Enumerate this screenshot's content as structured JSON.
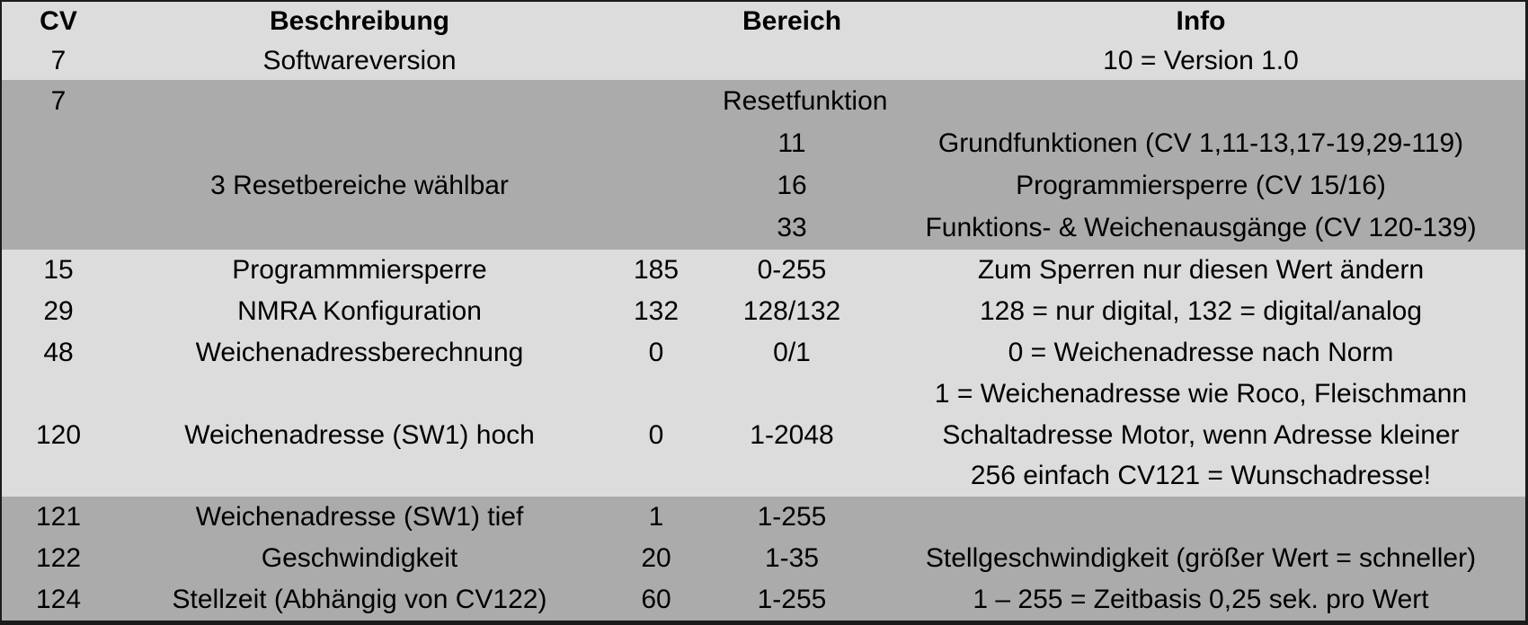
{
  "colors": {
    "light_row": "#dcdcdc",
    "dark_row": "#ababab",
    "text": "#000000",
    "frame": "#1b1b1b"
  },
  "table": {
    "header": [
      "CV",
      "Beschreibung",
      "",
      "Bereich",
      "Info"
    ],
    "rows": [
      {
        "cells": [
          "7",
          "Softwareversion",
          "",
          "",
          "10 = Version 1.0"
        ]
      },
      {
        "cells": [
          "7",
          "",
          "",
          "Resetfunktion",
          ""
        ],
        "merged": true
      },
      {
        "cells": [
          "",
          "",
          "",
          "11",
          "Grundfunktionen (CV 1,11-13,17-19,29-119)"
        ]
      },
      {
        "cells": [
          "",
          "3 Resetbereiche wählbar",
          "",
          "16",
          "Programmiersperre (CV 15/16)"
        ]
      },
      {
        "cells": [
          "",
          "",
          "",
          "33",
          "Funktions- & Weichenausgänge (CV 120-139)"
        ]
      },
      {
        "cells": [
          "15",
          "Programmmiersperre",
          "185",
          "0-255",
          "Zum Sperren nur diesen Wert ändern"
        ]
      },
      {
        "cells": [
          "29",
          "NMRA Konfiguration",
          "132",
          "128/132",
          "128 = nur digital, 132 = digital/analog"
        ]
      },
      {
        "cells": [
          "48",
          "Weichenadressberechnung",
          "0",
          "0/1",
          "0 = Weichenadresse nach Norm"
        ]
      },
      {
        "cells": [
          "",
          "",
          "",
          "",
          "1 = Weichenadresse wie Roco, Fleischmann"
        ]
      },
      {
        "cells": [
          "120",
          "Weichenadresse (SW1) hoch",
          "0",
          "1-2048",
          "Schaltadresse Motor, wenn Adresse kleiner"
        ]
      },
      {
        "cells": [
          "",
          "",
          "",
          "",
          "256 einfach CV121 = Wunschadresse!"
        ]
      },
      {
        "cells": [
          "121",
          "Weichenadresse (SW1) tief",
          "1",
          "1-255",
          ""
        ]
      },
      {
        "cells": [
          "122",
          "Geschwindigkeit",
          "20",
          "1-35",
          "Stellgeschwindigkeit (größer Wert = schneller)"
        ]
      },
      {
        "cells": [
          "124",
          "Stellzeit (Abhängig von CV122)",
          "60",
          "1-255",
          "1 – 255 = Zeitbasis 0,25 sek. pro Wert"
        ]
      }
    ]
  }
}
